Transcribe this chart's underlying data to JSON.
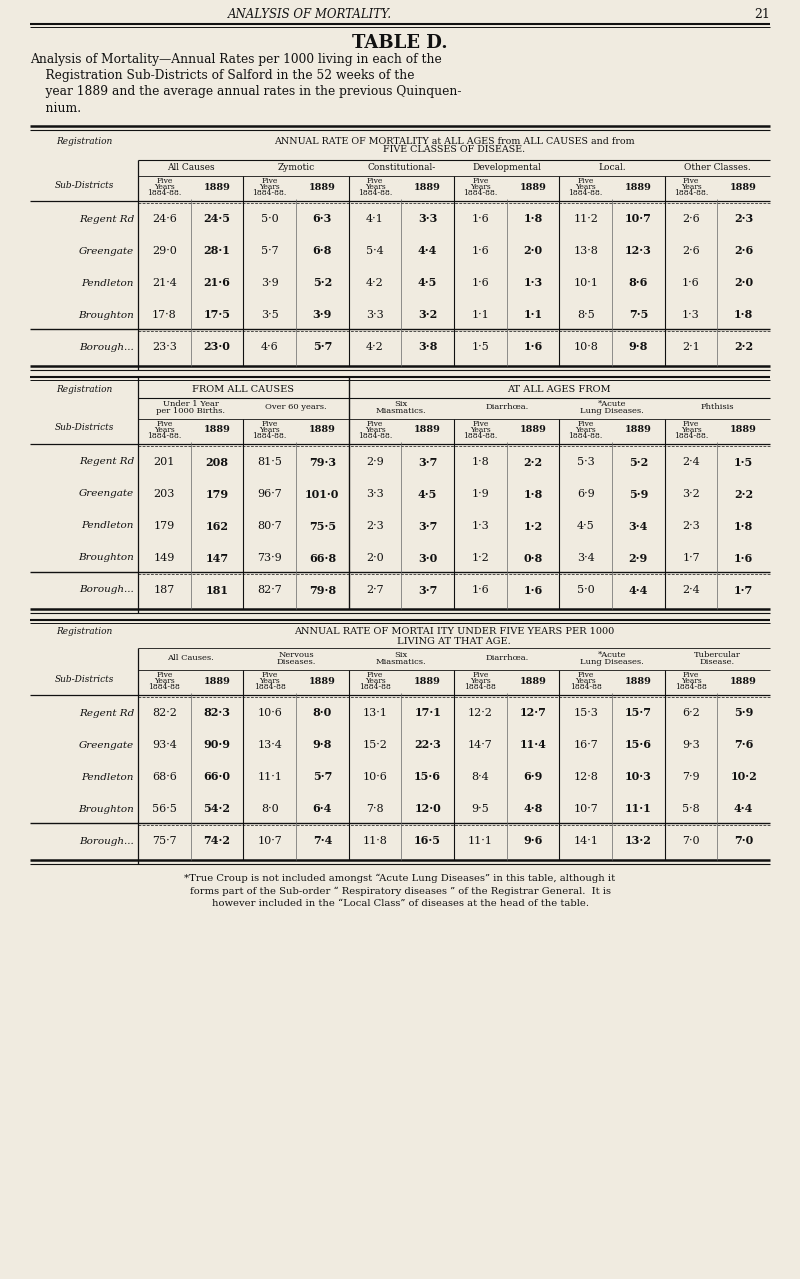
{
  "page_header": "ANALYSIS OF MORTALITY.",
  "page_number": "21",
  "title": "TABLE D.",
  "subtitle_lines": [
    "Analysis of Mortality—Annual Rates per 1000 living in each of the",
    "    Registration Sub-Districts of Salford in the 52 weeks of the",
    "    year 1889 and the average annual rates in the previous Quinquen-",
    "    nium."
  ],
  "table1": {
    "header1": "ANNUAL RATE OF MORTALITY at ALL AGES from ALL CAUSES and from",
    "header2": "FIVE CLASSES OF DISEASE.",
    "col_groups": [
      "All Causes",
      "Zymotic",
      "Constitutional-",
      "Developmental",
      "Local.",
      "Other Classes."
    ],
    "rows": [
      {
        "name": "Regent Rd",
        "data": [
          "24·6",
          "24·5",
          "5·0",
          "6·3",
          "4·1",
          "3·3",
          "1·6",
          "1·8",
          "11·2",
          "10·7",
          "2·6",
          "2·3"
        ]
      },
      {
        "name": "Greengate",
        "data": [
          "29·0",
          "28·1",
          "5·7",
          "6·8",
          "5·4",
          "4·4",
          "1·6",
          "2·0",
          "13·8",
          "12·3",
          "2·6",
          "2·6"
        ]
      },
      {
        "name": "Pendleton",
        "data": [
          "21·4",
          "21·6",
          "3·9",
          "5·2",
          "4·2",
          "4·5",
          "1·6",
          "1·3",
          "10·1",
          "8·6",
          "1·6",
          "2·0"
        ]
      },
      {
        "name": "Broughton",
        "data": [
          "17·8",
          "17·5",
          "3·5",
          "3·9",
          "3·3",
          "3·2",
          "1·1",
          "1·1",
          "8·5",
          "7·5",
          "1·3",
          "1·8"
        ]
      },
      {
        "name": "Borough...",
        "data": [
          "23·3",
          "23·0",
          "4·6",
          "5·7",
          "4·2",
          "3·8",
          "1·5",
          "1·6",
          "10·8",
          "9·8",
          "2·1",
          "2·2"
        ]
      }
    ]
  },
  "table2": {
    "header_left": "FROM ALL CAUSES",
    "header_right": "AT ALL AGES FROM",
    "col_groups": [
      "Under 1 Year\nper 1000 Births.",
      "Over 60 years.",
      "Six\nMiasmatics.",
      "Diarrhœa.",
      "*Acute\nLung Diseases.",
      "Phthisis"
    ],
    "rows": [
      {
        "name": "Regent Rd",
        "data": [
          "201",
          "208",
          "81·5",
          "79·3",
          "2·9",
          "3·7",
          "1·8",
          "2·2",
          "5·3",
          "5·2",
          "2·4",
          "1·5"
        ]
      },
      {
        "name": "Greengate",
        "data": [
          "203",
          "179",
          "96·7",
          "101·0",
          "3·3",
          "4·5",
          "1·9",
          "1·8",
          "6·9",
          "5·9",
          "3·2",
          "2·2"
        ]
      },
      {
        "name": "Pendleton",
        "data": [
          "179",
          "162",
          "80·7",
          "75·5",
          "2·3",
          "3·7",
          "1·3",
          "1·2",
          "4·5",
          "3·4",
          "2·3",
          "1·8"
        ]
      },
      {
        "name": "Broughton",
        "data": [
          "149",
          "147",
          "73·9",
          "66·8",
          "2·0",
          "3·0",
          "1·2",
          "0·8",
          "3·4",
          "2·9",
          "1·7",
          "1·6"
        ]
      },
      {
        "name": "Borough...",
        "data": [
          "187",
          "181",
          "82·7",
          "79·8",
          "2·7",
          "3·7",
          "1·6",
          "1·6",
          "5·0",
          "4·4",
          "2·4",
          "1·7"
        ]
      }
    ]
  },
  "table3": {
    "header1": "ANNUAL RATE OF MORTAI ITY UNDER FIVE YEARS PER 1000",
    "header2": "LIVING AT THAT AGE.",
    "col_groups": [
      "All Causes.",
      "Nervous\nDiseases.",
      "Six\nMiasmatics.",
      "Diarrhœa.",
      "*Acute\nLung Diseases.",
      "Tubercular\nDisease."
    ],
    "rows": [
      {
        "name": "Regent Rd",
        "data": [
          "82·2",
          "82·3",
          "10·6",
          "8·0",
          "13·1",
          "17·1",
          "12·2",
          "12·7",
          "15·3",
          "15·7",
          "6·2",
          "5·9"
        ]
      },
      {
        "name": "Greengate",
        "data": [
          "93·4",
          "90·9",
          "13·4",
          "9·8",
          "15·2",
          "22·3",
          "14·7",
          "11·4",
          "16·7",
          "15·6",
          "9·3",
          "7·6"
        ]
      },
      {
        "name": "Pendleton",
        "data": [
          "68·6",
          "66·0",
          "11·1",
          "5·7",
          "10·6",
          "15·6",
          "8·4",
          "6·9",
          "12·8",
          "10·3",
          "7·9",
          "10·2"
        ]
      },
      {
        "name": "Broughton",
        "data": [
          "56·5",
          "54·2",
          "8·0",
          "6·4",
          "7·8",
          "12·0",
          "9·5",
          "4·8",
          "10·7",
          "11·1",
          "5·8",
          "4·4"
        ]
      },
      {
        "name": "Borough...",
        "data": [
          "75·7",
          "74·2",
          "10·7",
          "7·4",
          "11·8",
          "16·5",
          "11·1",
          "9·6",
          "14·1",
          "13·2",
          "7·0",
          "7·0"
        ]
      }
    ]
  },
  "footnote_lines": [
    "*True Croup is not included amongst “Acute Lung Diseases” in this table, although it",
    "forms part of the Sub-order “ Respiratory diseases ” of the Registrar General.  It is",
    "however included in the “Local Class” of diseases at the head of the table."
  ],
  "bg_color": "#f0ebe0",
  "text_color": "#111111"
}
